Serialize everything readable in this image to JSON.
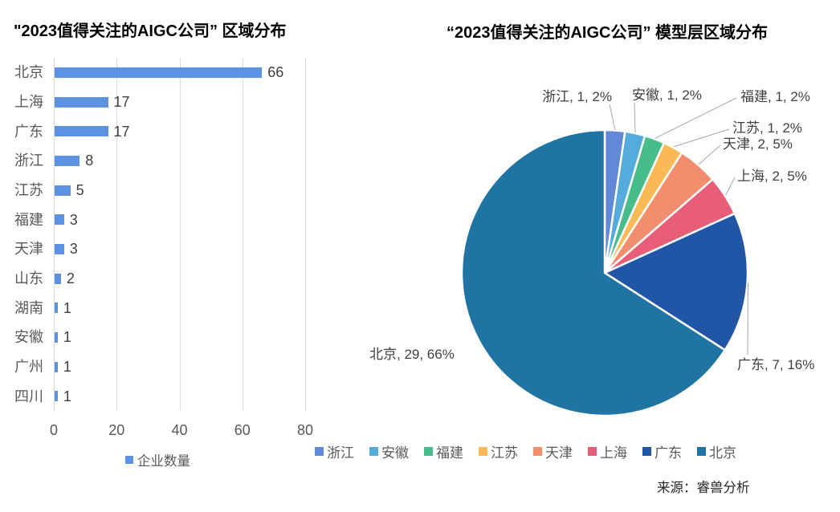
{
  "source": {
    "label": "来源：睿兽分析"
  },
  "chart_data": [
    {
      "type": "bar",
      "orientation": "horizontal",
      "title": "\"2023值得关注的AIGC公司” 区域分布",
      "series_name": "企业数量",
      "categories": [
        "北京",
        "上海",
        "广东",
        "浙江",
        "江苏",
        "福建",
        "天津",
        "山东",
        "湖南",
        "安徽",
        "广州",
        "四川"
      ],
      "values": [
        66,
        17,
        17,
        8,
        5,
        3,
        3,
        2,
        1,
        1,
        1,
        1
      ],
      "xlim": [
        0,
        80
      ],
      "x_ticks": [
        0,
        20,
        40,
        60,
        80
      ],
      "bar_color": "#5d92e2",
      "grid": true,
      "gridline_color": "#d9d9d9",
      "data_labels": true,
      "legend_position": "bottom"
    },
    {
      "type": "pie",
      "title": "“2023值得关注的AIGC公司” 模型层区域分布",
      "label_format": "{name}, {value}, {pct}",
      "start_angle": "12-oclock-clockwise",
      "slices": [
        {
          "name": "浙江",
          "value": 1,
          "pct": "2%",
          "color": "#6289d8"
        },
        {
          "name": "安徽",
          "value": 1,
          "pct": "2%",
          "color": "#56abdd"
        },
        {
          "name": "福建",
          "value": 1,
          "pct": "2%",
          "color": "#47bd8b"
        },
        {
          "name": "江苏",
          "value": 1,
          "pct": "2%",
          "color": "#fbb955"
        },
        {
          "name": "天津",
          "value": 2,
          "pct": "5%",
          "color": "#f08e6e"
        },
        {
          "name": "上海",
          "value": 2,
          "pct": "5%",
          "color": "#e85e78"
        },
        {
          "name": "广东",
          "value": 7,
          "pct": "16%",
          "color": "#2155a6"
        },
        {
          "name": "北京",
          "value": 29,
          "pct": "66%",
          "color": "#1f74a3"
        }
      ],
      "legend": [
        "浙江",
        "安徽",
        "福建",
        "江苏",
        "天津",
        "上海",
        "广东",
        "北京"
      ],
      "legend_position": "bottom",
      "leader_line_color": "#a6a6a6",
      "label_color": "#404040"
    }
  ]
}
